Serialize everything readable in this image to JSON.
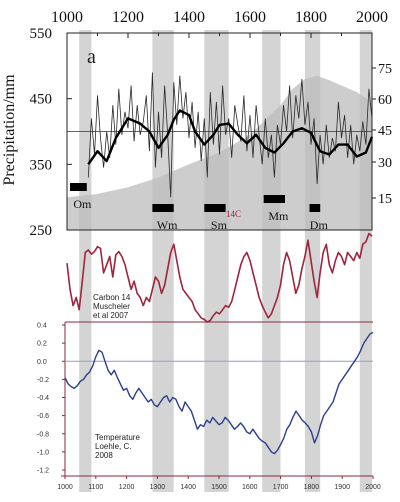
{
  "chart_data": [
    {
      "type": "line",
      "panel_label": "a",
      "x_ticks": [
        "1000",
        "1200",
        "1400",
        "1600",
        "1800",
        "2000"
      ],
      "x_ticks_minor": [
        "1100",
        "1300",
        "1500",
        "1700",
        "1900"
      ],
      "xlim": [
        1000,
        2000
      ],
      "ylabel": "Precipitation/mm",
      "y_ticks": [
        "550",
        "450",
        "350",
        "250"
      ],
      "ylim": [
        250,
        550
      ],
      "right_ticks": [
        "75",
        "60",
        "45",
        "30",
        "15"
      ],
      "shaded_periods": [
        [
          1040,
          1080
        ],
        [
          1280,
          1350
        ],
        [
          1450,
          1530
        ],
        [
          1640,
          1700
        ],
        [
          1780,
          1830
        ],
        [
          1960,
          2000
        ]
      ],
      "minima_bars": [
        {
          "label": "Om",
          "start": 1010,
          "end": 1065
        },
        {
          "label": "Wm",
          "start": 1280,
          "end": 1350
        },
        {
          "label": "Sm",
          "start": 1450,
          "end": 1520
        },
        {
          "label": "Mm",
          "start": 1645,
          "end": 1715
        },
        {
          "label": "Dm",
          "start": 1795,
          "end": 1830
        }
      ],
      "smooth_series": {
        "x": [
          1070,
          1100,
          1130,
          1160,
          1200,
          1240,
          1270,
          1300,
          1330,
          1350,
          1370,
          1400,
          1420,
          1450,
          1480,
          1500,
          1530,
          1560,
          1590,
          1620,
          1650,
          1680,
          1710,
          1740,
          1770,
          1800,
          1830,
          1860,
          1890,
          1920,
          1950,
          1980,
          2000
        ],
        "values": [
          350,
          370,
          355,
          390,
          420,
          412,
          400,
          375,
          395,
          418,
          432,
          425,
          400,
          380,
          395,
          410,
          412,
          395,
          382,
          395,
          375,
          368,
          382,
          400,
          405,
          398,
          370,
          365,
          380,
          380,
          362,
          368,
          392
        ]
      },
      "raw_series": {
        "x": [
          1070,
          1080,
          1090,
          1100,
          1110,
          1120,
          1130,
          1140,
          1150,
          1160,
          1170,
          1180,
          1190,
          1200,
          1210,
          1220,
          1230,
          1240,
          1250,
          1260,
          1270,
          1280,
          1290,
          1300,
          1310,
          1320,
          1330,
          1340,
          1350,
          1360,
          1370,
          1380,
          1390,
          1400,
          1410,
          1420,
          1430,
          1440,
          1450,
          1460,
          1470,
          1480,
          1490,
          1500,
          1510,
          1520,
          1530,
          1540,
          1550,
          1560,
          1570,
          1580,
          1590,
          1600,
          1610,
          1620,
          1630,
          1640,
          1650,
          1660,
          1670,
          1680,
          1690,
          1700,
          1710,
          1720,
          1730,
          1740,
          1750,
          1760,
          1770,
          1780,
          1790,
          1800,
          1810,
          1820,
          1830,
          1840,
          1850,
          1860,
          1870,
          1880,
          1890,
          1900,
          1910,
          1920,
          1930,
          1940,
          1950,
          1960,
          1970,
          1980,
          1990,
          2000
        ],
        "values": [
          330,
          420,
          365,
          455,
          390,
          345,
          400,
          360,
          440,
          380,
          465,
          395,
          430,
          405,
          470,
          385,
          440,
          395,
          415,
          455,
          370,
          490,
          345,
          430,
          360,
          470,
          395,
          300,
          475,
          410,
          485,
          420,
          460,
          390,
          445,
          375,
          430,
          355,
          420,
          330,
          460,
          380,
          445,
          365,
          470,
          395,
          420,
          360,
          440,
          410,
          385,
          455,
          370,
          425,
          360,
          440,
          395,
          350,
          420,
          360,
          395,
          330,
          410,
          380,
          440,
          400,
          470,
          390,
          455,
          420,
          480,
          410,
          445,
          380,
          420,
          320,
          395,
          350,
          410,
          360,
          390,
          370,
          445,
          390,
          425,
          360,
          410,
          350,
          395,
          370,
          415,
          380,
          465,
          420
        ]
      },
      "background_shading": {
        "x": [
          1000,
          1100,
          1200,
          1300,
          1400,
          1500,
          1600,
          1700,
          1740,
          1780,
          1820,
          1860,
          1900,
          1950,
          2000
        ],
        "values": [
          300,
          305,
          315,
          330,
          350,
          368,
          395,
          440,
          465,
          480,
          485,
          478,
          470,
          460,
          445
        ]
      }
    },
    {
      "type": "line",
      "series_name": "Carbon 14 Muscheler et al 2007",
      "series_name_lines": [
        "Carbon 14",
        "Muscheler",
        "et  al 2007"
      ],
      "marker_label": "14C",
      "color": "#a0243c",
      "x": [
        1000,
        1010,
        1020,
        1030,
        1040,
        1050,
        1060,
        1070,
        1080,
        1090,
        1100,
        1110,
        1120,
        1130,
        1140,
        1150,
        1160,
        1170,
        1180,
        1190,
        1200,
        1210,
        1220,
        1230,
        1240,
        1250,
        1260,
        1270,
        1280,
        1290,
        1300,
        1310,
        1320,
        1330,
        1340,
        1350,
        1360,
        1370,
        1380,
        1390,
        1400,
        1410,
        1420,
        1430,
        1440,
        1450,
        1460,
        1470,
        1480,
        1490,
        1500,
        1510,
        1520,
        1530,
        1540,
        1550,
        1560,
        1570,
        1580,
        1590,
        1600,
        1610,
        1620,
        1630,
        1640,
        1650,
        1660,
        1670,
        1680,
        1690,
        1700,
        1710,
        1720,
        1730,
        1740,
        1750,
        1760,
        1770,
        1780,
        1790,
        1800,
        1810,
        1820,
        1830,
        1840,
        1850,
        1860,
        1870,
        1880,
        1890,
        1900,
        1910,
        1920,
        1930,
        1940,
        1950,
        1960,
        1970,
        1980,
        1990,
        2000
      ],
      "values": [
        0.72,
        0.4,
        0.2,
        0.3,
        0.15,
        0.5,
        0.85,
        0.88,
        0.83,
        0.86,
        0.92,
        0.9,
        0.6,
        0.7,
        0.8,
        0.55,
        0.82,
        0.86,
        0.8,
        0.7,
        0.55,
        0.4,
        0.5,
        0.35,
        0.3,
        0.2,
        0.3,
        0.25,
        0.4,
        0.55,
        0.5,
        0.35,
        0.45,
        0.65,
        0.85,
        0.95,
        0.75,
        0.55,
        0.4,
        0.35,
        0.3,
        0.25,
        0.15,
        0.1,
        0.05,
        0.03,
        0.0,
        0.02,
        0.08,
        0.12,
        0.1,
        0.15,
        0.2,
        0.18,
        0.25,
        0.4,
        0.55,
        0.7,
        0.8,
        0.85,
        0.75,
        0.6,
        0.45,
        0.3,
        0.2,
        0.12,
        0.05,
        0.1,
        0.2,
        0.3,
        0.45,
        0.7,
        0.85,
        0.75,
        0.55,
        0.35,
        0.45,
        0.65,
        0.8,
        1.0,
        0.75,
        0.5,
        0.3,
        0.6,
        0.85,
        0.95,
        0.7,
        0.6,
        0.75,
        0.85,
        0.8,
        0.7,
        0.85,
        0.8,
        0.75,
        0.85,
        0.78,
        0.95,
        0.98,
        1.08,
        1.05
      ]
    },
    {
      "type": "line",
      "series_name": "Temperature Loehle, C. 2008",
      "series_name_lines": [
        "Temperature",
        "Loehle, C.",
        "2008"
      ],
      "color": "#2c3f8c",
      "xlim": [
        1000,
        2000
      ],
      "x_ticks": [
        "1000",
        "1100",
        "1200",
        "1300",
        "1400",
        "1500",
        "1600",
        "1700",
        "1800",
        "1900",
        "2000"
      ],
      "y_ticks": [
        "0.4",
        "0.2",
        "0.0",
        "-0.2",
        "-0.4",
        "-0.6",
        "-0.8",
        "-1.0",
        "-1.2"
      ],
      "ylim": [
        -1.2,
        0.4
      ],
      "x": [
        1000,
        1010,
        1020,
        1030,
        1040,
        1050,
        1060,
        1070,
        1080,
        1090,
        1100,
        1110,
        1120,
        1130,
        1140,
        1150,
        1160,
        1170,
        1180,
        1190,
        1200,
        1210,
        1220,
        1230,
        1240,
        1250,
        1260,
        1270,
        1280,
        1290,
        1300,
        1310,
        1320,
        1330,
        1340,
        1350,
        1360,
        1370,
        1380,
        1390,
        1400,
        1410,
        1420,
        1430,
        1440,
        1450,
        1460,
        1470,
        1480,
        1490,
        1500,
        1510,
        1520,
        1530,
        1540,
        1550,
        1560,
        1570,
        1580,
        1590,
        1600,
        1610,
        1620,
        1630,
        1640,
        1650,
        1660,
        1670,
        1680,
        1690,
        1700,
        1710,
        1720,
        1730,
        1740,
        1750,
        1760,
        1770,
        1780,
        1790,
        1800,
        1810,
        1820,
        1830,
        1840,
        1850,
        1860,
        1870,
        1880,
        1890,
        1900,
        1910,
        1920,
        1930,
        1940,
        1950,
        1960,
        1970,
        1980,
        1990,
        2000
      ],
      "values": [
        -0.18,
        -0.25,
        -0.28,
        -0.3,
        -0.27,
        -0.22,
        -0.2,
        -0.15,
        -0.12,
        -0.05,
        0.05,
        0.12,
        0.1,
        0.0,
        -0.1,
        -0.15,
        -0.1,
        -0.18,
        -0.25,
        -0.32,
        -0.3,
        -0.38,
        -0.42,
        -0.35,
        -0.3,
        -0.35,
        -0.4,
        -0.45,
        -0.42,
        -0.48,
        -0.5,
        -0.45,
        -0.4,
        -0.38,
        -0.45,
        -0.4,
        -0.42,
        -0.5,
        -0.55,
        -0.45,
        -0.5,
        -0.55,
        -0.65,
        -0.75,
        -0.7,
        -0.72,
        -0.65,
        -0.68,
        -0.62,
        -0.66,
        -0.7,
        -0.68,
        -0.62,
        -0.65,
        -0.7,
        -0.75,
        -0.72,
        -0.68,
        -0.72,
        -0.78,
        -0.8,
        -0.75,
        -0.8,
        -0.85,
        -0.88,
        -0.9,
        -0.95,
        -1.0,
        -1.02,
        -0.98,
        -0.92,
        -0.85,
        -0.75,
        -0.7,
        -0.62,
        -0.55,
        -0.6,
        -0.65,
        -0.68,
        -0.72,
        -0.78,
        -0.9,
        -0.82,
        -0.7,
        -0.6,
        -0.55,
        -0.5,
        -0.45,
        -0.35,
        -0.25,
        -0.2,
        -0.15,
        -0.1,
        -0.05,
        0.0,
        0.05,
        0.12,
        0.2,
        0.25,
        0.3,
        0.32
      ]
    }
  ]
}
